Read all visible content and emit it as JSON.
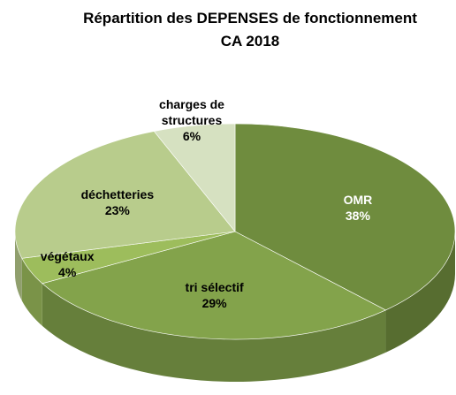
{
  "chart_data": {
    "type": "pie3d",
    "title": "Répartition des DEPENSES de fonctionnement",
    "subtitle": "CA 2018",
    "categories": [
      "OMR",
      "tri sélectif",
      "végétaux",
      "déchetteries",
      "charges de structures"
    ],
    "values": [
      38,
      29,
      4,
      23,
      6
    ],
    "value_labels": [
      "38%",
      "29%",
      "4%",
      "23%",
      "6%"
    ],
    "colors": [
      "#6f8c3e",
      "#83a34b",
      "#9dbd5c",
      "#b8cc8c",
      "#d6e1c1"
    ],
    "label_colors": [
      "#ffffff",
      "#000000",
      "#000000",
      "#000000",
      "#000000"
    ]
  }
}
